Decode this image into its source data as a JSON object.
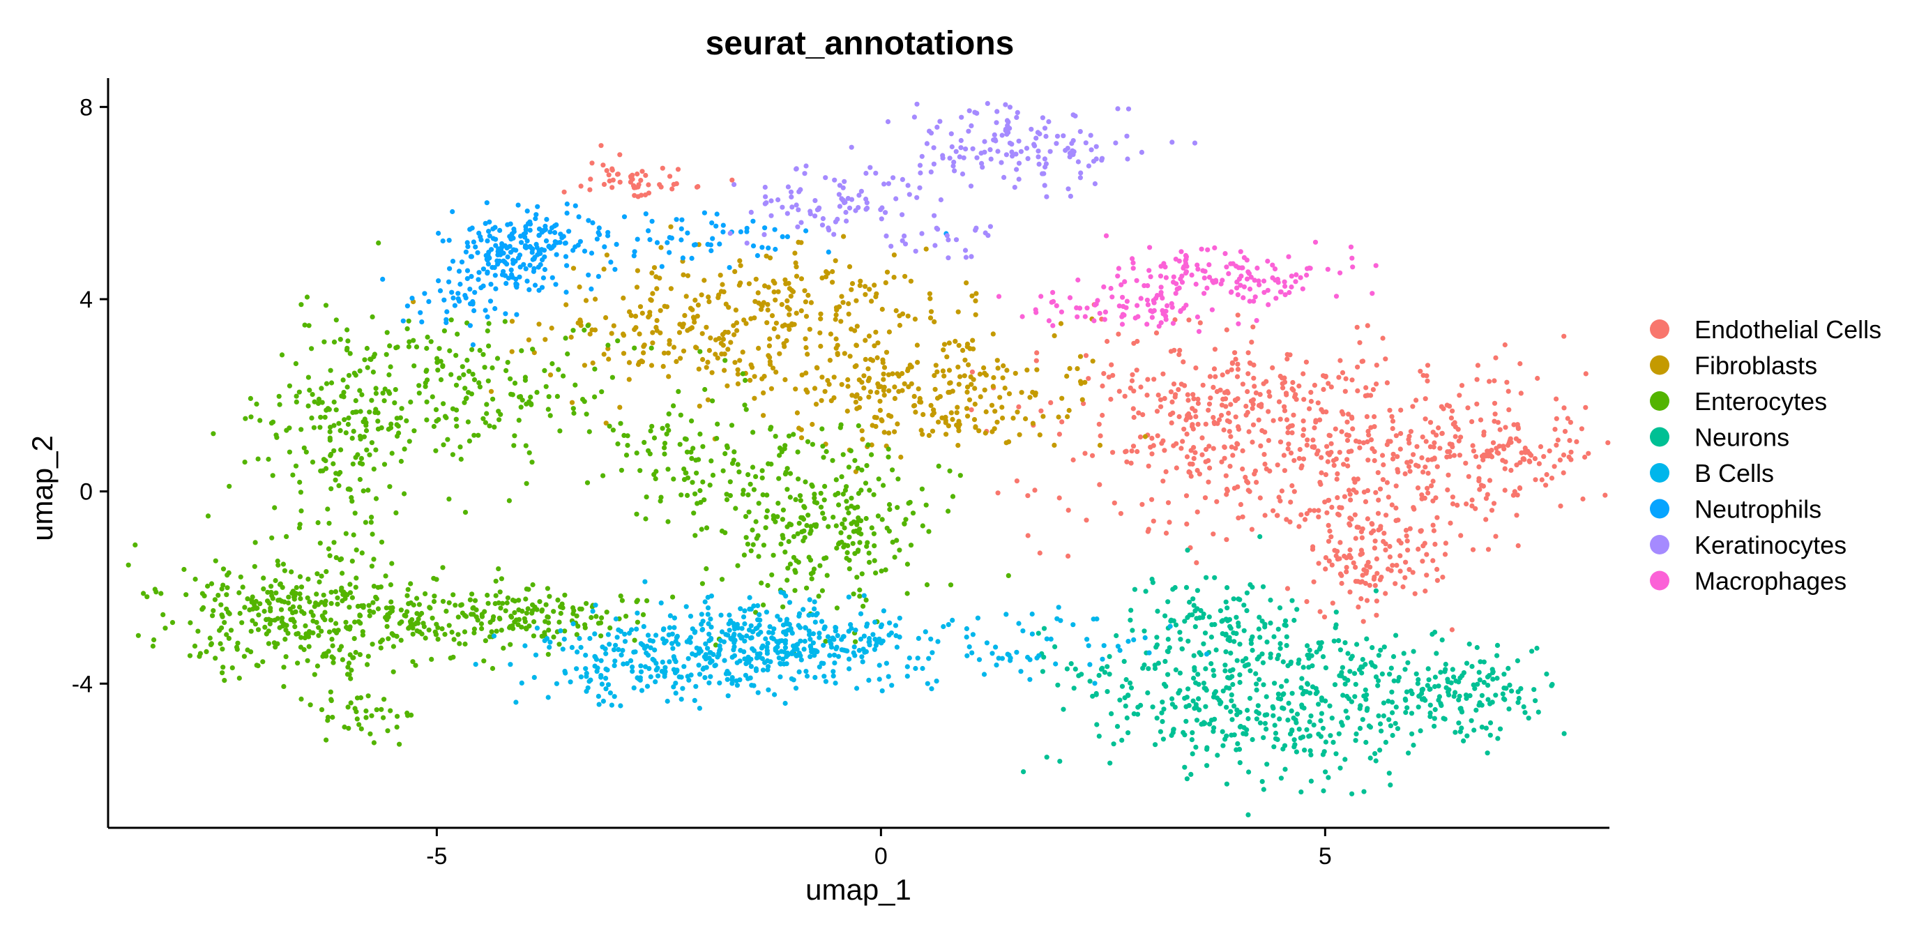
{
  "chart_data": {
    "type": "scatter",
    "title": "seurat_annotations",
    "xlabel": "umap_1",
    "ylabel": "umap_2",
    "xlim": [
      -8.7,
      8.2
    ],
    "ylim": [
      -7.0,
      8.6
    ],
    "x_ticks": [
      -5,
      0,
      5
    ],
    "x_tick_labels": [
      "-5",
      "0",
      "5"
    ],
    "y_ticks": [
      -4,
      0,
      4,
      8
    ],
    "y_tick_labels": [
      "-4",
      "0",
      "4",
      "8"
    ],
    "grid": false,
    "legend_position": "right",
    "series": [
      {
        "name": "Endothelial Cells",
        "color": "#F8766D",
        "clusters": [
          {
            "cx": 5.2,
            "cy": 0.8,
            "sx": 1.6,
            "sy": 1.0,
            "n": 520
          },
          {
            "cx": 3.8,
            "cy": 1.8,
            "sx": 1.0,
            "sy": 0.8,
            "n": 200
          },
          {
            "cx": 5.5,
            "cy": -1.5,
            "sx": 0.4,
            "sy": 0.6,
            "n": 120
          },
          {
            "cx": 7.0,
            "cy": 0.9,
            "sx": 0.4,
            "sy": 0.3,
            "n": 60
          },
          {
            "cx": -2.8,
            "cy": 6.5,
            "sx": 0.35,
            "sy": 0.25,
            "n": 50
          }
        ]
      },
      {
        "name": "Fibroblasts",
        "color": "#C49A00",
        "clusters": [
          {
            "cx": -1.5,
            "cy": 3.2,
            "sx": 1.2,
            "sy": 0.7,
            "n": 280
          },
          {
            "cx": 0.6,
            "cy": 2.0,
            "sx": 0.9,
            "sy": 0.7,
            "n": 230
          },
          {
            "cx": -0.8,
            "cy": 4.2,
            "sx": 1.0,
            "sy": 0.4,
            "n": 80
          }
        ]
      },
      {
        "name": "Enterocytes",
        "color": "#53B400",
        "clusters": [
          {
            "cx": -6.5,
            "cy": -2.6,
            "sx": 0.9,
            "sy": 0.6,
            "n": 350
          },
          {
            "cx": -4.2,
            "cy": -2.6,
            "sx": 0.9,
            "sy": 0.3,
            "n": 200
          },
          {
            "cx": -6.0,
            "cy": 0.8,
            "sx": 0.5,
            "sy": 1.3,
            "n": 170
          },
          {
            "cx": -4.8,
            "cy": 2.0,
            "sx": 1.0,
            "sy": 0.8,
            "n": 220
          },
          {
            "cx": -0.6,
            "cy": -0.6,
            "sx": 0.6,
            "sy": 0.9,
            "n": 280
          },
          {
            "cx": -2.0,
            "cy": 0.8,
            "sx": 0.5,
            "sy": 0.7,
            "n": 90
          },
          {
            "cx": -5.8,
            "cy": -4.6,
            "sx": 0.3,
            "sy": 0.3,
            "n": 40
          }
        ]
      },
      {
        "name": "Neurons",
        "color": "#00C094",
        "clusters": [
          {
            "cx": 4.3,
            "cy": -4.3,
            "sx": 0.9,
            "sy": 0.9,
            "n": 450
          },
          {
            "cx": 6.4,
            "cy": -4.2,
            "sx": 0.6,
            "sy": 0.5,
            "n": 170
          },
          {
            "cx": 3.6,
            "cy": -2.5,
            "sx": 0.4,
            "sy": 0.5,
            "n": 60
          },
          {
            "cx": 2.5,
            "cy": -3.8,
            "sx": 0.4,
            "sy": 0.4,
            "n": 30
          }
        ]
      },
      {
        "name": "B Cells",
        "color": "#00B6EB",
        "clusters": [
          {
            "cx": -1.3,
            "cy": -3.2,
            "sx": 0.9,
            "sy": 0.45,
            "n": 430
          },
          {
            "cx": -2.8,
            "cy": -3.6,
            "sx": 0.6,
            "sy": 0.4,
            "n": 120
          },
          {
            "cx": 1.6,
            "cy": -3.2,
            "sx": 0.7,
            "sy": 0.4,
            "n": 60
          }
        ]
      },
      {
        "name": "Neutrophils",
        "color": "#06A4FF",
        "clusters": [
          {
            "cx": -4.1,
            "cy": 5.0,
            "sx": 0.4,
            "sy": 0.45,
            "n": 200
          },
          {
            "cx": -2.3,
            "cy": 5.3,
            "sx": 0.8,
            "sy": 0.25,
            "n": 70
          },
          {
            "cx": -4.8,
            "cy": 4.0,
            "sx": 0.3,
            "sy": 0.3,
            "n": 40
          }
        ]
      },
      {
        "name": "Keratinocytes",
        "color": "#A58AFF",
        "clusters": [
          {
            "cx": 1.5,
            "cy": 7.2,
            "sx": 0.6,
            "sy": 0.4,
            "n": 140
          },
          {
            "cx": -0.5,
            "cy": 6.0,
            "sx": 0.6,
            "sy": 0.4,
            "n": 90
          },
          {
            "cx": 0.8,
            "cy": 5.2,
            "sx": 0.5,
            "sy": 0.2,
            "n": 20
          }
        ]
      },
      {
        "name": "Macrophages",
        "color": "#FB61D7",
        "clusters": [
          {
            "cx": 3.9,
            "cy": 4.5,
            "sx": 0.6,
            "sy": 0.3,
            "n": 140
          },
          {
            "cx": 2.8,
            "cy": 3.8,
            "sx": 0.5,
            "sy": 0.2,
            "n": 70
          }
        ]
      }
    ]
  }
}
